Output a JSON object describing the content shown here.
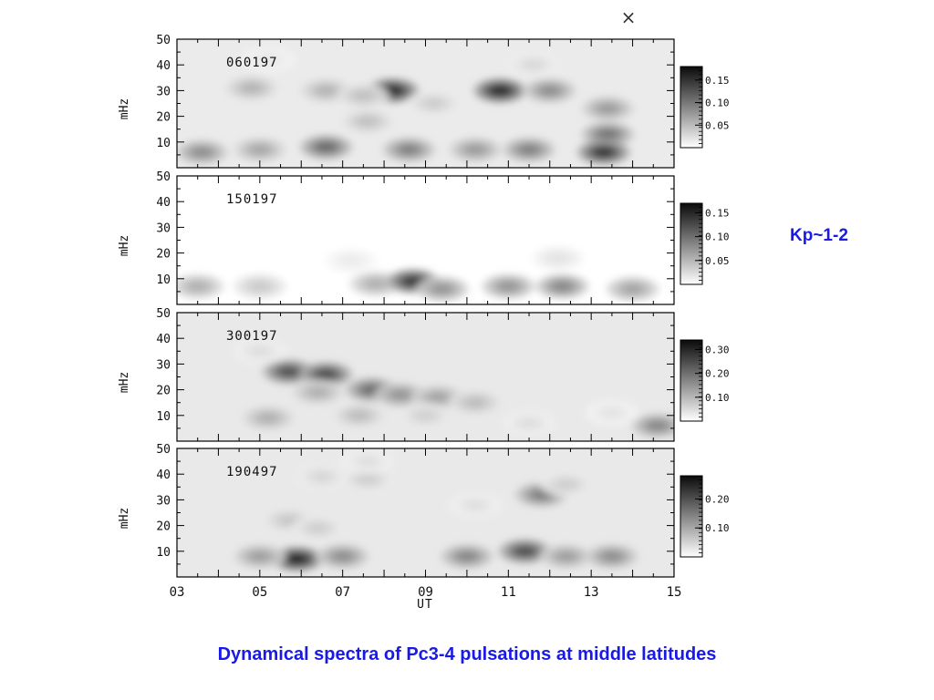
{
  "chart_data": {
    "type": "heatmap",
    "title": "",
    "xlabel": "UT",
    "ylabel": "mHz",
    "xlim": [
      3,
      15
    ],
    "ylim": [
      0,
      50
    ],
    "x_ticks": [
      "03",
      "05",
      "07",
      "09",
      "11",
      "13",
      "15"
    ],
    "y_ticks": [
      "10",
      "20",
      "30",
      "40",
      "50"
    ],
    "corner_mark": "×",
    "panels": [
      {
        "label": "060197",
        "colorbar_ticks": [
          "0.05",
          "0.10",
          "0.15"
        ],
        "vmax": 0.18,
        "background": 0.015,
        "blobs": [
          {
            "ut": 8.2,
            "f": 30,
            "amp": 0.17
          },
          {
            "ut": 10.8,
            "f": 30,
            "amp": 0.17
          },
          {
            "ut": 12.0,
            "f": 30,
            "amp": 0.09
          },
          {
            "ut": 6.6,
            "f": 30,
            "amp": 0.06
          },
          {
            "ut": 4.8,
            "f": 31,
            "amp": 0.06
          },
          {
            "ut": 7.5,
            "f": 28,
            "amp": 0.05
          },
          {
            "ut": 9.2,
            "f": 25,
            "amp": 0.04
          },
          {
            "ut": 13.4,
            "f": 23,
            "amp": 0.08
          },
          {
            "ut": 13.4,
            "f": 13,
            "amp": 0.11
          },
          {
            "ut": 13.3,
            "f": 6,
            "amp": 0.16
          },
          {
            "ut": 3.6,
            "f": 6,
            "amp": 0.09
          },
          {
            "ut": 5.0,
            "f": 7,
            "amp": 0.07
          },
          {
            "ut": 6.6,
            "f": 8,
            "amp": 0.12
          },
          {
            "ut": 8.6,
            "f": 7,
            "amp": 0.1
          },
          {
            "ut": 10.2,
            "f": 7,
            "amp": 0.08
          },
          {
            "ut": 11.5,
            "f": 7,
            "amp": 0.1
          },
          {
            "ut": 7.6,
            "f": 18,
            "amp": 0.05
          },
          {
            "ut": 11.6,
            "f": 40,
            "amp": 0.03
          },
          {
            "ut": 5.2,
            "f": 42,
            "amp": 0.02
          }
        ]
      },
      {
        "label": "150197",
        "colorbar_ticks": [
          "0.05",
          "0.10",
          "0.15"
        ],
        "vmax": 0.17,
        "background": 0.0,
        "blobs": [
          {
            "ut": 3.5,
            "f": 7,
            "amp": 0.06
          },
          {
            "ut": 5.0,
            "f": 7,
            "amp": 0.04
          },
          {
            "ut": 7.8,
            "f": 8,
            "amp": 0.06
          },
          {
            "ut": 8.7,
            "f": 9,
            "amp": 0.15
          },
          {
            "ut": 9.4,
            "f": 6,
            "amp": 0.08
          },
          {
            "ut": 11.0,
            "f": 7,
            "amp": 0.08
          },
          {
            "ut": 12.3,
            "f": 7,
            "amp": 0.09
          },
          {
            "ut": 14.0,
            "f": 6,
            "amp": 0.07
          },
          {
            "ut": 12.2,
            "f": 18,
            "amp": 0.02
          },
          {
            "ut": 7.2,
            "f": 17,
            "amp": 0.015
          }
        ]
      },
      {
        "label": "300197",
        "colorbar_ticks": [
          "0.10",
          "0.20",
          "0.30"
        ],
        "vmax": 0.34,
        "background": 0.03,
        "blobs": [
          {
            "ut": 5.7,
            "f": 27,
            "amp": 0.26
          },
          {
            "ut": 6.6,
            "f": 26,
            "amp": 0.27
          },
          {
            "ut": 7.7,
            "f": 20,
            "amp": 0.22
          },
          {
            "ut": 8.4,
            "f": 18,
            "amp": 0.16
          },
          {
            "ut": 9.3,
            "f": 17,
            "amp": 0.14
          },
          {
            "ut": 10.2,
            "f": 15,
            "amp": 0.1
          },
          {
            "ut": 6.4,
            "f": 19,
            "amp": 0.12
          },
          {
            "ut": 5.2,
            "f": 9,
            "amp": 0.12
          },
          {
            "ut": 7.4,
            "f": 10,
            "amp": 0.1
          },
          {
            "ut": 9.0,
            "f": 10,
            "amp": 0.07
          },
          {
            "ut": 14.6,
            "f": 6,
            "amp": 0.18
          },
          {
            "ut": 11.5,
            "f": 7,
            "amp": 0.05
          },
          {
            "ut": 13.5,
            "f": 11,
            "amp": 0.04
          },
          {
            "ut": 5.0,
            "f": 35,
            "amp": 0.05
          }
        ]
      },
      {
        "label": "190497",
        "colorbar_ticks": [
          "0.10",
          "0.20"
        ],
        "vmax": 0.28,
        "background": 0.025,
        "blobs": [
          {
            "ut": 5.9,
            "f": 7,
            "amp": 0.27
          },
          {
            "ut": 5.0,
            "f": 8,
            "amp": 0.12
          },
          {
            "ut": 7.0,
            "f": 8,
            "amp": 0.14
          },
          {
            "ut": 11.4,
            "f": 10,
            "amp": 0.22
          },
          {
            "ut": 10.0,
            "f": 8,
            "amp": 0.15
          },
          {
            "ut": 12.4,
            "f": 8,
            "amp": 0.12
          },
          {
            "ut": 13.5,
            "f": 8,
            "amp": 0.14
          },
          {
            "ut": 11.8,
            "f": 32,
            "amp": 0.16
          },
          {
            "ut": 12.4,
            "f": 36,
            "amp": 0.06
          },
          {
            "ut": 5.7,
            "f": 22,
            "amp": 0.07
          },
          {
            "ut": 6.4,
            "f": 19,
            "amp": 0.06
          },
          {
            "ut": 6.5,
            "f": 39,
            "amp": 0.05
          },
          {
            "ut": 7.6,
            "f": 38,
            "amp": 0.06
          },
          {
            "ut": 7.6,
            "f": 45,
            "amp": 0.04
          },
          {
            "ut": 10.2,
            "f": 28,
            "amp": 0.04
          }
        ]
      }
    ]
  },
  "annotation": "Kp~1-2",
  "caption": "Dynamical spectra of Pc3-4 pulsations at middle latitudes"
}
